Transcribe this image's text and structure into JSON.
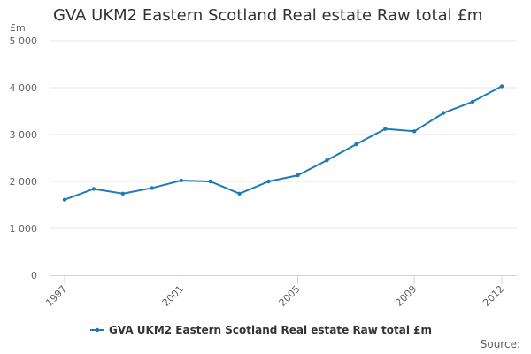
{
  "chart_data": {
    "type": "line",
    "title": "GVA UKM2 Eastern Scotland Real estate Raw total £m",
    "y_unit": "£m",
    "source_label": "Source:",
    "x_tick_labels": [
      "1997",
      "2001",
      "2005",
      "2009",
      "2012"
    ],
    "y_tick_labels": [
      "0",
      "1 000",
      "2 000",
      "3 000",
      "4 000",
      "5 000"
    ],
    "ylim": [
      0,
      5000
    ],
    "xlim": [
      1997,
      2012
    ],
    "grid": true,
    "legend_position": "bottom",
    "series": [
      {
        "name": "GVA UKM2 Eastern Scotland Real estate Raw total £m",
        "color": "#1f7ab8",
        "x": [
          1997,
          1998,
          1999,
          2000,
          2001,
          2002,
          2003,
          2004,
          2005,
          2006,
          2007,
          2008,
          2009,
          2010,
          2011,
          2012
        ],
        "values": [
          1610,
          1840,
          1740,
          1860,
          2020,
          2000,
          1740,
          2000,
          2130,
          2450,
          2790,
          3120,
          3070,
          3460,
          3700,
          4030
        ]
      }
    ]
  }
}
